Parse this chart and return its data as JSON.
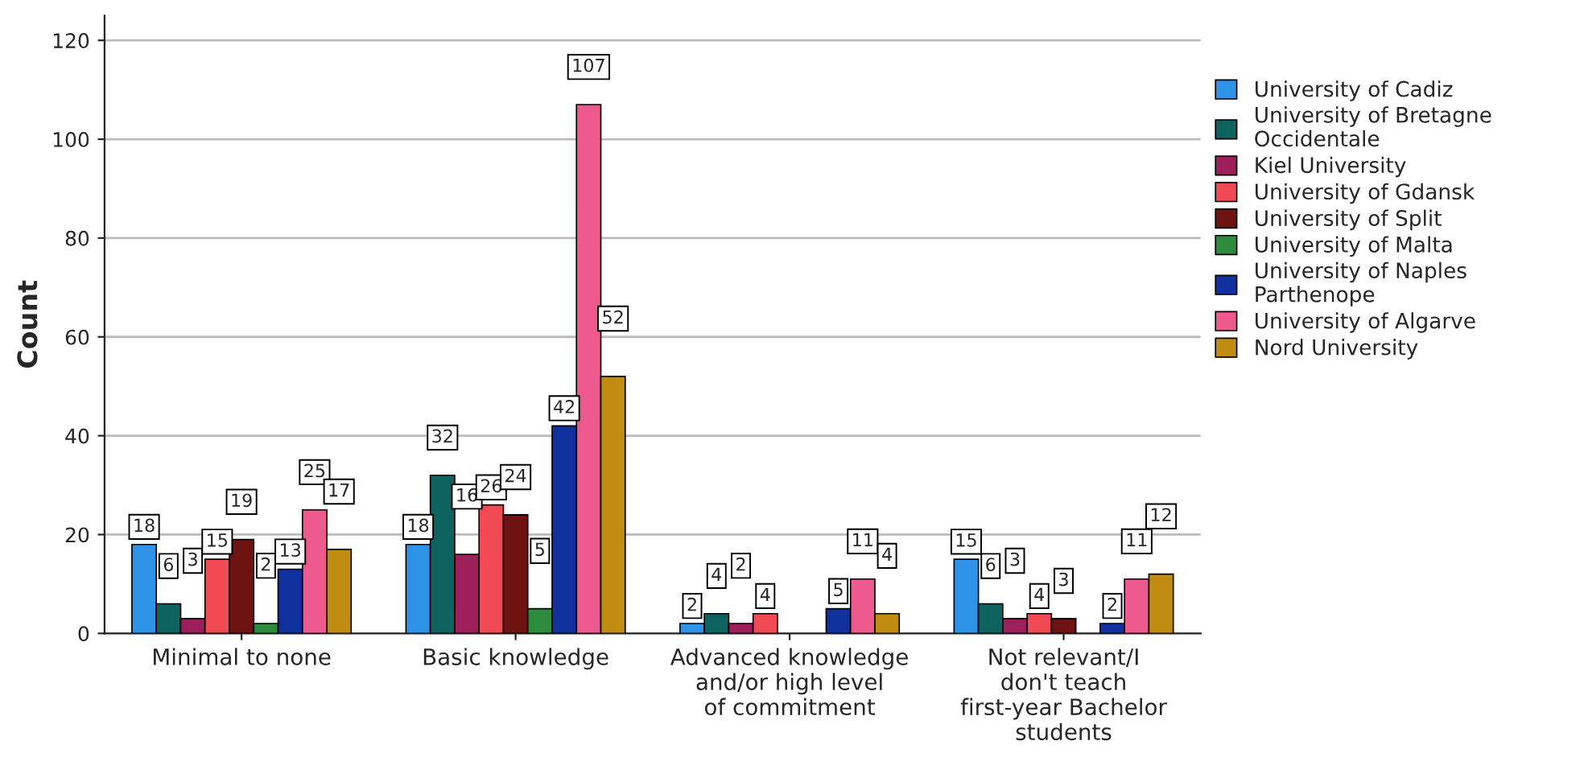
{
  "chart_data": {
    "type": "bar",
    "ylabel": "Count",
    "categories": [
      "Minimal to none",
      "Basic knowledge",
      "Advanced knowledge and/or high level of commitment",
      "Not relevant/I don't teach first-year Bachelor students"
    ],
    "series": [
      {
        "name": "University of Cadiz",
        "color": "#2e92e6",
        "values": [
          18,
          18,
          2,
          15
        ]
      },
      {
        "name": "University of Bretagne Occidentale",
        "color": "#0e6360",
        "values": [
          6,
          32,
          4,
          6
        ]
      },
      {
        "name": "Kiel University",
        "color": "#9c1f5a",
        "values": [
          3,
          16,
          2,
          3
        ]
      },
      {
        "name": "University of Gdansk",
        "color": "#f24a55",
        "values": [
          15,
          26,
          4,
          4
        ]
      },
      {
        "name": "University of Split",
        "color": "#6e1212",
        "values": [
          19,
          24,
          null,
          3
        ]
      },
      {
        "name": "University of Malta",
        "color": "#2e8b3e",
        "values": [
          2,
          5,
          null,
          null
        ]
      },
      {
        "name": "University of Naples Parthenope",
        "color": "#10309e",
        "values": [
          13,
          42,
          5,
          2
        ]
      },
      {
        "name": "University of Algarve",
        "color": "#ef5a8e",
        "values": [
          25,
          107,
          11,
          11
        ]
      },
      {
        "name": "Nord University",
        "color": "#c08c12",
        "values": [
          17,
          52,
          4,
          12
        ]
      }
    ],
    "ylim": [
      0,
      125
    ],
    "yticks": [
      0,
      20,
      40,
      60,
      80,
      100,
      120
    ],
    "grid": "y",
    "legend": "right",
    "data_labels": true
  }
}
